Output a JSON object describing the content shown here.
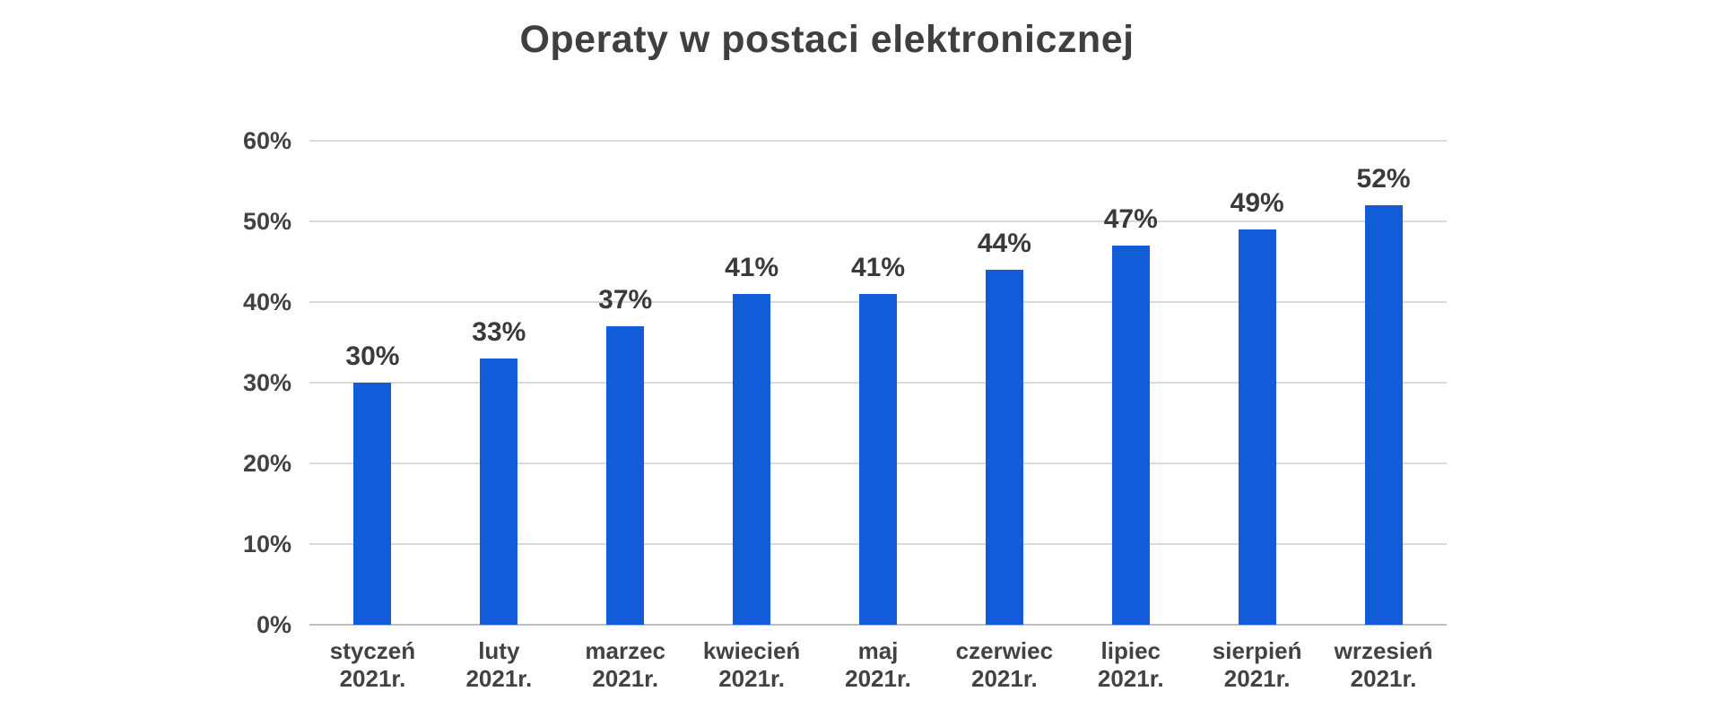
{
  "chart_data": {
    "type": "bar",
    "title": "Operaty w postaci elektronicznej",
    "categories": [
      [
        "styczeń",
        "2021r."
      ],
      [
        "luty",
        "2021r."
      ],
      [
        "marzec",
        "2021r."
      ],
      [
        "kwiecień",
        "2021r."
      ],
      [
        "maj",
        "2021r."
      ],
      [
        "czerwiec",
        "2021r."
      ],
      [
        "lipiec",
        "2021r."
      ],
      [
        "sierpień",
        "2021r."
      ],
      [
        "wrzesień",
        "2021r."
      ]
    ],
    "values": [
      30,
      33,
      37,
      41,
      41,
      44,
      47,
      49,
      52
    ],
    "bar_labels": [
      "30%",
      "33%",
      "37%",
      "41%",
      "41%",
      "44%",
      "47%",
      "49%",
      "52%"
    ],
    "y_tick_labels": [
      "0%",
      "10%",
      "20%",
      "30%",
      "40%",
      "50%",
      "60%"
    ],
    "y_tick_values": [
      0,
      10,
      20,
      30,
      40,
      50,
      60
    ],
    "ylim": [
      0,
      60
    ],
    "xlabel": "",
    "ylabel": "",
    "grid": true,
    "legend_position": "none",
    "colors": {
      "bar": "#135CD9",
      "title_text": "#3F3F3F",
      "value_label_text": "#3A3A3A",
      "axis_label_text": "#424242",
      "gridline": "#D9D9D9",
      "baseline": "#BDBDBD",
      "background": "#FFFFFF"
    }
  }
}
